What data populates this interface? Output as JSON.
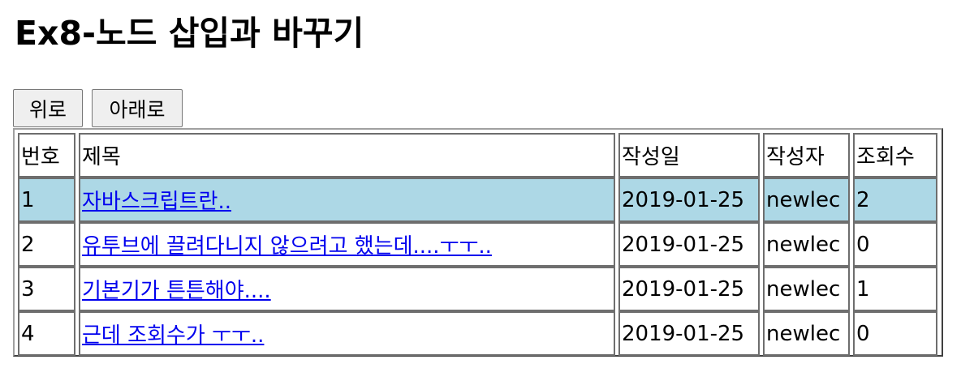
{
  "page": {
    "title": "Ex8-노드 삽입과 바꾸기"
  },
  "controls": {
    "up_label": "위로",
    "down_label": "아래로"
  },
  "table": {
    "headers": [
      "번호",
      "제목",
      "작성일",
      "작성자",
      "조회수"
    ],
    "rows": [
      {
        "num": "1",
        "title": "자바스크립트란..",
        "date": "2019-01-25",
        "writer": "newlec",
        "hits": "2",
        "highlighted": true
      },
      {
        "num": "2",
        "title": "유투브에 끌려다니지 않으려고 했는데....ㅜㅜ..",
        "date": "2019-01-25",
        "writer": "newlec",
        "hits": "0",
        "highlighted": false
      },
      {
        "num": "3",
        "title": "기본기가 튼튼해야....",
        "date": "2019-01-25",
        "writer": "newlec",
        "hits": "1",
        "highlighted": false
      },
      {
        "num": "4",
        "title": "근데 조회수가 ㅜㅜ..",
        "date": "2019-01-25",
        "writer": "newlec",
        "hits": "0",
        "highlighted": false
      }
    ]
  },
  "colors": {
    "highlight": "#add8e6",
    "link": "#0000ee"
  }
}
